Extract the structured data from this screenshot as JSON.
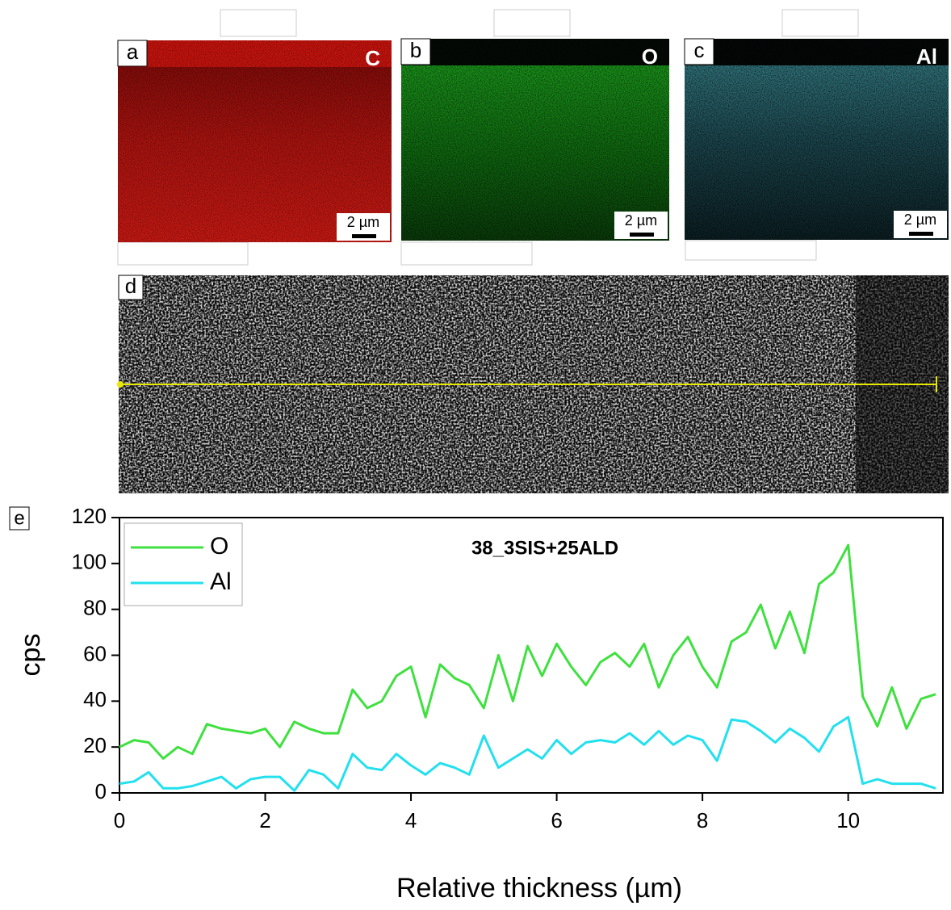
{
  "maps": [
    {
      "label": "a",
      "element": "C",
      "scale_bar": "2 µm"
    },
    {
      "label": "b",
      "element": "O",
      "scale_bar": "2 µm"
    },
    {
      "label": "c",
      "element": "Al",
      "scale_bar": "2 µm"
    }
  ],
  "line_scan": {
    "label": "d"
  },
  "chart_data": {
    "type": "line",
    "panel_label": "e",
    "title": "38_3SIS+25ALD",
    "x_label": "Relative thickness (µm)",
    "y_label": "cps",
    "x": [
      0,
      0.2,
      0.4,
      0.6,
      0.8,
      1.0,
      1.2,
      1.4,
      1.6,
      1.8,
      2.0,
      2.2,
      2.4,
      2.6,
      2.8,
      3.0,
      3.2,
      3.4,
      3.6,
      3.8,
      4.0,
      4.2,
      4.4,
      4.6,
      4.8,
      5.0,
      5.2,
      5.4,
      5.6,
      5.8,
      6.0,
      6.2,
      6.4,
      6.6,
      6.8,
      7.0,
      7.2,
      7.4,
      7.6,
      7.8,
      8.0,
      8.2,
      8.4,
      8.6,
      8.8,
      9.0,
      9.2,
      9.4,
      9.6,
      9.8,
      10.0,
      10.2,
      10.4,
      10.6,
      10.8,
      11.0,
      11.2
    ],
    "series": [
      {
        "name": "O",
        "color": "#3fe03f",
        "values": [
          20,
          23,
          22,
          15,
          20,
          17,
          30,
          28,
          27,
          26,
          28,
          20,
          31,
          28,
          26,
          26,
          45,
          37,
          40,
          51,
          55,
          33,
          56,
          50,
          47,
          37,
          60,
          40,
          64,
          51,
          65,
          55,
          47,
          57,
          61,
          55,
          65,
          46,
          60,
          68,
          55,
          46,
          66,
          70,
          82,
          63,
          79,
          61,
          91,
          96,
          108,
          42,
          29,
          46,
          28,
          41,
          43
        ]
      },
      {
        "name": "Al",
        "color": "#22e0ee",
        "values": [
          4,
          5,
          9,
          2,
          2,
          3,
          5,
          7,
          2,
          6,
          7,
          7,
          1,
          10,
          8,
          2,
          17,
          11,
          10,
          17,
          12,
          8,
          13,
          11,
          8,
          25,
          11,
          15,
          19,
          15,
          23,
          17,
          22,
          23,
          22,
          26,
          21,
          27,
          21,
          25,
          23,
          14,
          32,
          31,
          27,
          22,
          28,
          24,
          18,
          29,
          33,
          4,
          6,
          4,
          4,
          4,
          2
        ]
      }
    ],
    "xlim": [
      0,
      11.3
    ],
    "ylim": [
      0,
      120
    ],
    "xticks": [
      0,
      2,
      4,
      6,
      8,
      10
    ],
    "yticks": [
      0,
      20,
      40,
      60,
      80,
      100,
      120
    ],
    "legend": "top-left"
  }
}
